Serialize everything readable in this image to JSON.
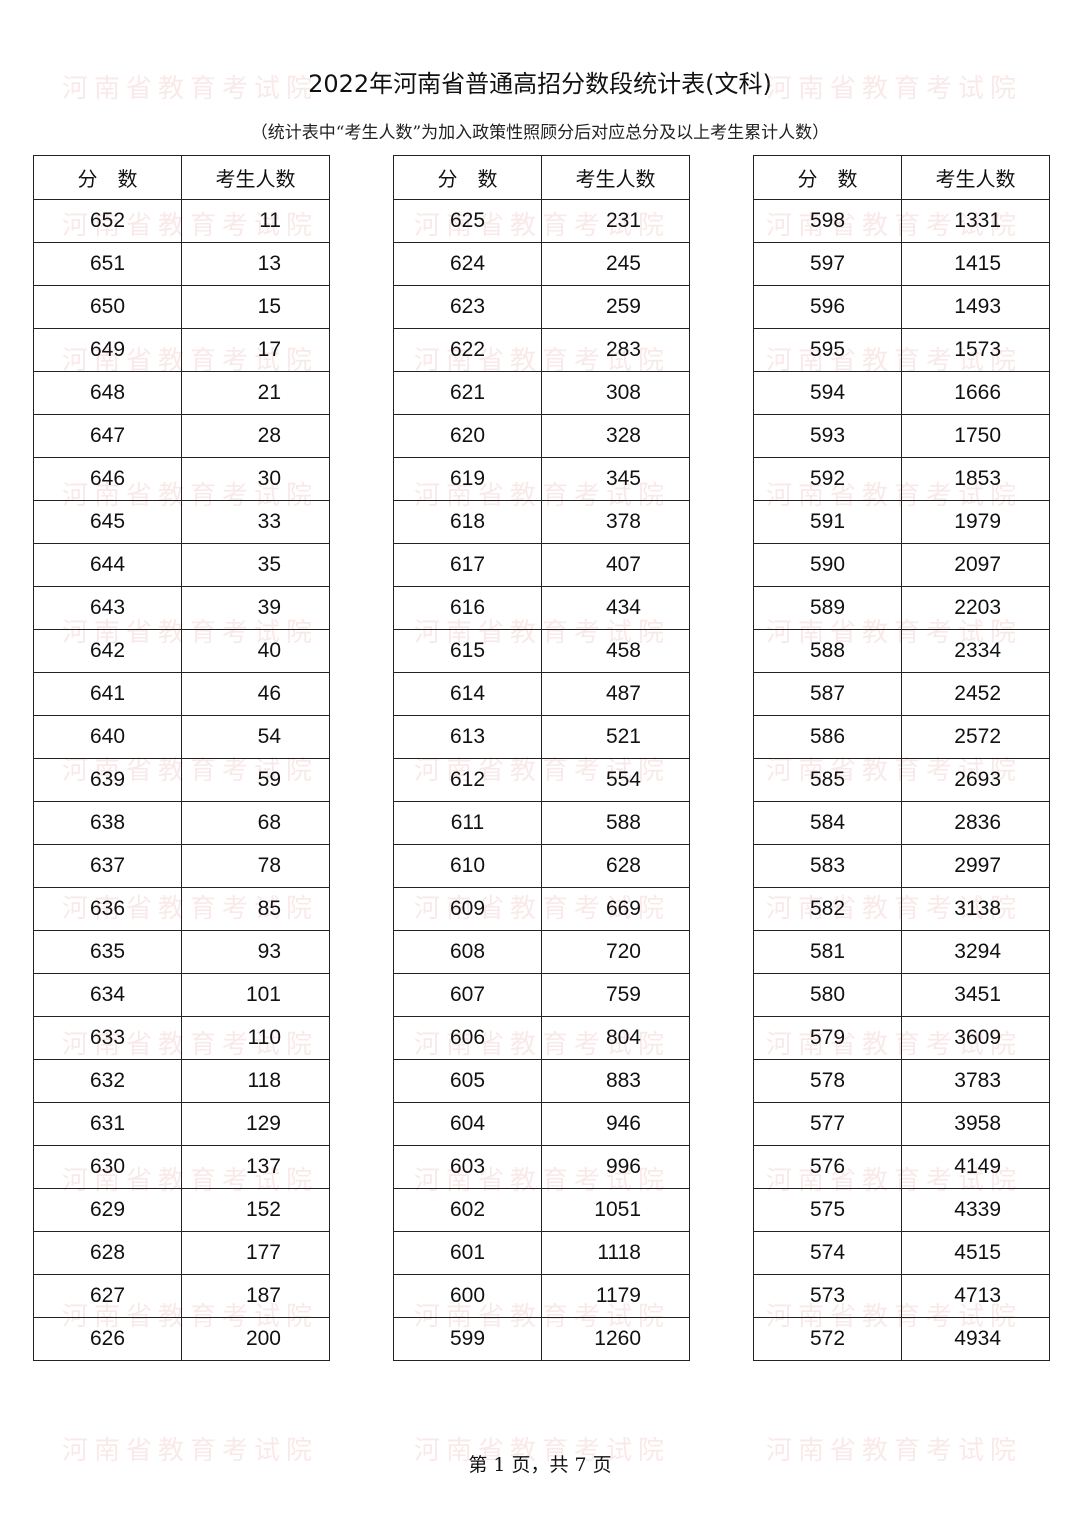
{
  "title": "2022年河南省普通高招分数段统计表(文科)",
  "subtitle": "（统计表中“考生人数”为加入政策性照顾分后对应总分及以上考生累计人数）",
  "watermark": "河南省教育考试院",
  "footer": "第 1 页，共 7 页",
  "header": {
    "score": "分　数",
    "count": "考生人数"
  },
  "tables": [
    {
      "scores": [
        652,
        651,
        650,
        649,
        648,
        647,
        646,
        645,
        644,
        643,
        642,
        641,
        640,
        639,
        638,
        637,
        636,
        635,
        634,
        633,
        632,
        631,
        630,
        629,
        628,
        627,
        626
      ],
      "counts": [
        11,
        13,
        15,
        17,
        21,
        28,
        30,
        33,
        35,
        39,
        40,
        46,
        54,
        59,
        68,
        78,
        85,
        93,
        101,
        110,
        118,
        129,
        137,
        152,
        177,
        187,
        200
      ]
    },
    {
      "scores": [
        625,
        624,
        623,
        622,
        621,
        620,
        619,
        618,
        617,
        616,
        615,
        614,
        613,
        612,
        611,
        610,
        609,
        608,
        607,
        606,
        605,
        604,
        603,
        602,
        601,
        600,
        599
      ],
      "counts": [
        231,
        245,
        259,
        283,
        308,
        328,
        345,
        378,
        407,
        434,
        458,
        487,
        521,
        554,
        588,
        628,
        669,
        720,
        759,
        804,
        883,
        946,
        996,
        1051,
        1118,
        1179,
        1260
      ]
    },
    {
      "scores": [
        598,
        597,
        596,
        595,
        594,
        593,
        592,
        591,
        590,
        589,
        588,
        587,
        586,
        585,
        584,
        583,
        582,
        581,
        580,
        579,
        578,
        577,
        576,
        575,
        574,
        573,
        572
      ],
      "counts": [
        1331,
        1415,
        1493,
        1573,
        1666,
        1750,
        1853,
        1979,
        2097,
        2203,
        2334,
        2452,
        2572,
        2693,
        2836,
        2997,
        3138,
        3294,
        3451,
        3609,
        3783,
        3958,
        4149,
        4339,
        4515,
        4713,
        4934
      ]
    }
  ]
}
